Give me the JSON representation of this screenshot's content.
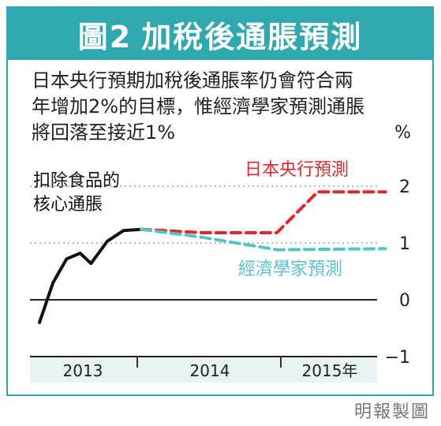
{
  "header": {
    "figure_label": "圖2",
    "title": "加稅後通脹預測"
  },
  "subtitle_lines": [
    "日本央行預期加稅後通脹率仍會符合兩",
    "年增加2%的目標，惟經濟學家預測通脹",
    "將回落至接近1%"
  ],
  "source": "明報製圖",
  "chart_data": {
    "type": "line",
    "title": "",
    "ylabel": "%",
    "ylim": [
      -1,
      2.2
    ],
    "yticks": [
      -1,
      0,
      1,
      2
    ],
    "yticklabels": [
      "−1",
      "0",
      "1",
      "2"
    ],
    "xticklabels": [
      "2013",
      "2014",
      "2015年"
    ],
    "grid": "dotted at 1 and 2",
    "series": [
      {
        "name": "扣除食品的核心通脹",
        "label_lines": [
          "扣除食品的",
          "核心通脹"
        ],
        "color": "#111111",
        "style": "solid",
        "points": [
          [
            0.0,
            -0.4
          ],
          [
            0.1,
            0.3
          ],
          [
            0.2,
            0.72
          ],
          [
            0.3,
            0.82
          ],
          [
            0.38,
            0.64
          ],
          [
            0.5,
            1.03
          ],
          [
            0.62,
            1.22
          ],
          [
            0.75,
            1.24
          ]
        ]
      },
      {
        "name": "日本央行預測",
        "color": "#e02828",
        "style": "dashed",
        "points": [
          [
            0.75,
            1.24
          ],
          [
            1.2,
            1.18
          ],
          [
            1.75,
            1.18
          ],
          [
            2.05,
            1.9
          ],
          [
            2.55,
            1.9
          ]
        ]
      },
      {
        "name": "經濟學家預測",
        "color": "#55c4c8",
        "style": "dashed",
        "points": [
          [
            0.75,
            1.24
          ],
          [
            1.2,
            1.1
          ],
          [
            1.75,
            0.88
          ],
          [
            2.55,
            0.9
          ]
        ]
      }
    ]
  }
}
